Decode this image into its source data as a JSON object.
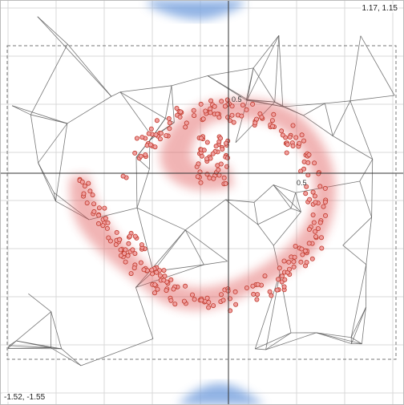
{
  "view": {
    "corner_top_right": "1.17, 1.15",
    "corner_bottom_left": "-1.52, -1.55",
    "xmin": -1.52,
    "xmax": 1.17,
    "ymin": -1.55,
    "ymax": 1.15
  },
  "axis_labels": {
    "x_half": "0.5",
    "y_half": "0.5"
  },
  "colors": {
    "background": "#ffffff",
    "grid": "#d9d9d9",
    "axes": "#333333",
    "mesh": "#555555",
    "selection_box": "#777777",
    "density": "#e05a5a",
    "points_fill": "#f0a0a0",
    "points_stroke": "#c0392b",
    "blue_blob": "#7ea6e0"
  },
  "icons": {
    "density": "kernel-density-shape",
    "blob": "blue-density-blob"
  }
}
